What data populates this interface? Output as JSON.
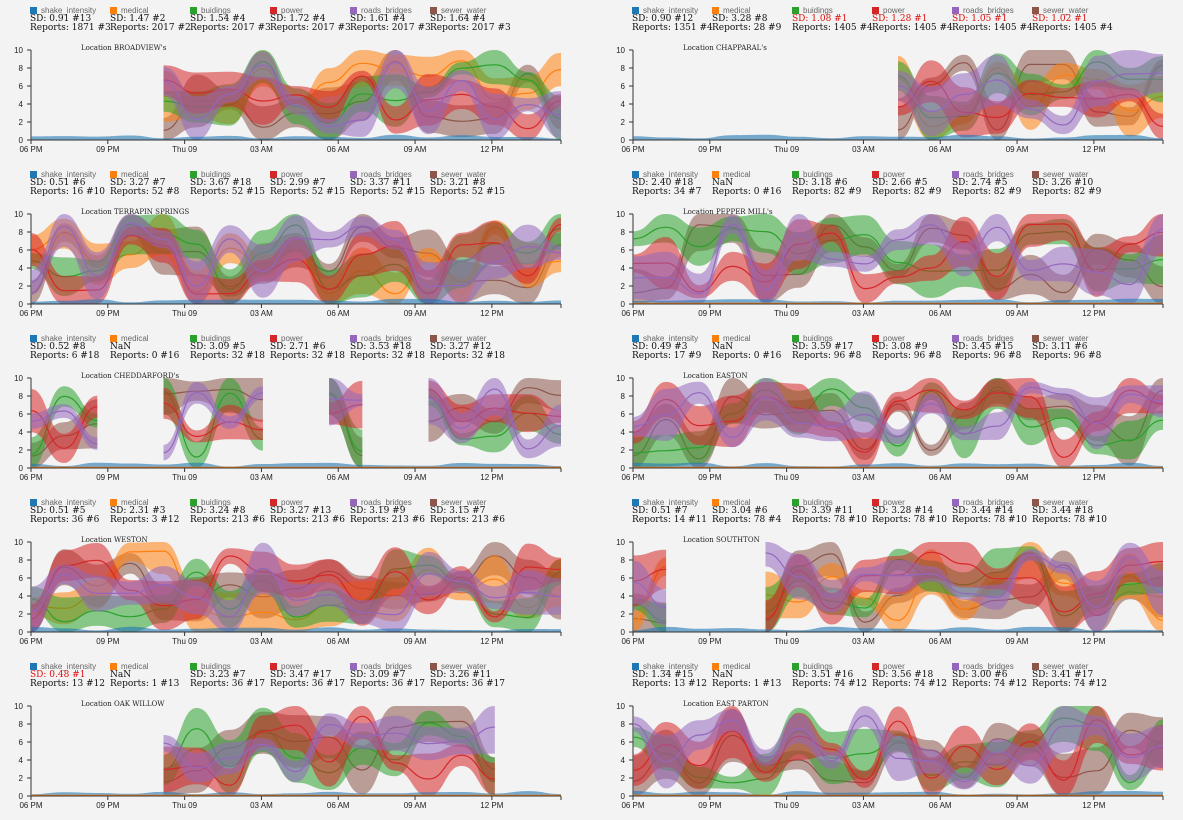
{
  "colors": {
    "shake_intensity": "#1f77b4",
    "medical": "#ff7f0e",
    "buidings": "#2ca02c",
    "power": "#d62728",
    "roads_bridges": "#9467bd",
    "sewer_water": "#8c564b"
  },
  "series_names": [
    "shake_intensity",
    "medical",
    "buidings",
    "power",
    "roads_bridges",
    "sewer_water"
  ],
  "chart_data": [
    {
      "type": "area",
      "title": "Location BROADVIEW's",
      "x_ticks": [
        "06 PM",
        "09 PM",
        "Thu 09",
        "03 AM",
        "06 AM",
        "09 AM",
        "12 PM"
      ],
      "y_ticks": [
        "0",
        "2",
        "4",
        "6",
        "8",
        "10"
      ],
      "ylim": [
        0,
        10
      ],
      "stats": [
        {
          "sd": "SD: 0.91 #13",
          "rep": "Reports: 1871 #3"
        },
        {
          "sd": "SD: 1.47 #2",
          "rep": "Reports: 2017 #2"
        },
        {
          "sd": "SD: 1.54 #4",
          "rep": "Reports: 2017 #3"
        },
        {
          "sd": "SD: 1.72 #4",
          "rep": "Reports: 2017 #3"
        },
        {
          "sd": "SD: 1.61 #4",
          "rep": "Reports: 2017 #3"
        },
        {
          "sd": "SD: 1.64 #4",
          "rep": "Reports: 2017 #3"
        }
      ],
      "warn": [
        false,
        false,
        false,
        false,
        false,
        false
      ],
      "gaps": [
        [
          0,
          0.24
        ]
      ]
    },
    {
      "type": "area",
      "title": "Location CHAPPARAL's",
      "x_ticks": [
        "06 PM",
        "09 PM",
        "Thu 09",
        "03 AM",
        "06 AM",
        "09 AM",
        "12 PM"
      ],
      "y_ticks": [
        "0",
        "2",
        "4",
        "6",
        "8",
        "10"
      ],
      "ylim": [
        0,
        10
      ],
      "stats": [
        {
          "sd": "SD: 0.90 #12",
          "rep": "Reports: 1351 #4"
        },
        {
          "sd": "SD: 3.28 #8",
          "rep": "Reports: 28 #9"
        },
        {
          "sd": "SD: 1.08 #1",
          "rep": "Reports: 1405 #4"
        },
        {
          "sd": "SD: 1.28 #1",
          "rep": "Reports: 1405 #4"
        },
        {
          "sd": "SD: 1.05 #1",
          "rep": "Reports: 1405 #4"
        },
        {
          "sd": "SD: 1.02 #1",
          "rep": "Reports: 1405 #4"
        }
      ],
      "warn": [
        false,
        false,
        true,
        true,
        true,
        true
      ],
      "gaps": [
        [
          0,
          0.48
        ]
      ]
    },
    {
      "type": "area",
      "title": "Location TERRAPIN SPRINGS",
      "x_ticks": [
        "06 PM",
        "09 PM",
        "Thu 09",
        "03 AM",
        "06 AM",
        "09 AM",
        "12 PM"
      ],
      "y_ticks": [
        "0",
        "2",
        "4",
        "6",
        "8",
        "10"
      ],
      "ylim": [
        0,
        10
      ],
      "stats": [
        {
          "sd": "SD: 0.51 #6",
          "rep": "Reports: 16 #10"
        },
        {
          "sd": "SD: 3.27 #7",
          "rep": "Reports: 52 #8"
        },
        {
          "sd": "SD: 3.67 #18",
          "rep": "Reports: 52 #15"
        },
        {
          "sd": "SD: 2.99 #7",
          "rep": "Reports: 52 #15"
        },
        {
          "sd": "SD: 3.37 #11",
          "rep": "Reports: 52 #15"
        },
        {
          "sd": "SD: 3.21 #8",
          "rep": "Reports: 52 #15"
        }
      ],
      "warn": [
        false,
        false,
        false,
        false,
        false,
        false
      ],
      "gaps": []
    },
    {
      "type": "area",
      "title": "Location PEPPER MILL's",
      "x_ticks": [
        "06 PM",
        "09 PM",
        "Thu 09",
        "03 AM",
        "06 AM",
        "09 AM",
        "12 PM"
      ],
      "y_ticks": [
        "0",
        "2",
        "4",
        "6",
        "8",
        "10"
      ],
      "ylim": [
        0,
        10
      ],
      "stats": [
        {
          "sd": "SD: 2.40 #18",
          "rep": "Reports: 34 #7"
        },
        {
          "sd": "NaN",
          "rep": "Reports: 0 #16"
        },
        {
          "sd": "SD: 3.18 #6",
          "rep": "Reports: 82 #9"
        },
        {
          "sd": "SD: 2.66 #5",
          "rep": "Reports: 82 #9"
        },
        {
          "sd": "SD: 2.74 #5",
          "rep": "Reports: 82 #9"
        },
        {
          "sd": "SD: 3.26 #10",
          "rep": "Reports: 82 #9"
        }
      ],
      "warn": [
        false,
        false,
        false,
        false,
        false,
        false
      ],
      "gaps": []
    },
    {
      "type": "area",
      "title": "Location CHEDDARFORD's",
      "x_ticks": [
        "06 PM",
        "09 PM",
        "Thu 09",
        "03 AM",
        "06 AM",
        "09 AM",
        "12 PM"
      ],
      "y_ticks": [
        "0",
        "2",
        "4",
        "6",
        "8",
        "10"
      ],
      "ylim": [
        0,
        10
      ],
      "stats": [
        {
          "sd": "SD: 0.52 #8",
          "rep": "Reports: 6 #18"
        },
        {
          "sd": "NaN",
          "rep": "Reports: 0 #16"
        },
        {
          "sd": "SD: 3.09 #5",
          "rep": "Reports: 32 #18"
        },
        {
          "sd": "SD: 2.71 #6",
          "rep": "Reports: 32 #18"
        },
        {
          "sd": "SD: 3.53 #18",
          "rep": "Reports: 32 #18"
        },
        {
          "sd": "SD: 3.27 #12",
          "rep": "Reports: 32 #18"
        }
      ],
      "warn": [
        false,
        false,
        false,
        false,
        false,
        false
      ],
      "gaps": [
        [
          0.15,
          0.24
        ],
        [
          0.44,
          0.53
        ],
        [
          0.65,
          0.74
        ]
      ]
    },
    {
      "type": "area",
      "title": "Location EASTON",
      "x_ticks": [
        "06 PM",
        "09 PM",
        "Thu 09",
        "03 AM",
        "06 AM",
        "09 AM",
        "12 PM"
      ],
      "y_ticks": [
        "0",
        "2",
        "4",
        "6",
        "8",
        "10"
      ],
      "ylim": [
        0,
        10
      ],
      "stats": [
        {
          "sd": "SD: 0.49 #3",
          "rep": "Reports: 17 #9"
        },
        {
          "sd": "NaN",
          "rep": "Reports: 0 #16"
        },
        {
          "sd": "SD: 3.59 #17",
          "rep": "Reports: 96 #8"
        },
        {
          "sd": "SD: 3.08 #9",
          "rep": "Reports: 96 #8"
        },
        {
          "sd": "SD: 3.45 #15",
          "rep": "Reports: 96 #8"
        },
        {
          "sd": "SD: 3.11 #6",
          "rep": "Reports: 96 #8"
        }
      ],
      "warn": [
        false,
        false,
        false,
        false,
        false,
        false
      ],
      "gaps": []
    },
    {
      "type": "area",
      "title": "Location WESTON",
      "x_ticks": [
        "06 PM",
        "09 PM",
        "Thu 09",
        "03 AM",
        "06 AM",
        "09 AM",
        "12 PM"
      ],
      "y_ticks": [
        "0",
        "2",
        "4",
        "6",
        "8",
        "10"
      ],
      "ylim": [
        0,
        10
      ],
      "stats": [
        {
          "sd": "SD: 0.51 #5",
          "rep": "Reports: 36 #6"
        },
        {
          "sd": "SD: 2.31 #3",
          "rep": "Reports: 3 #12"
        },
        {
          "sd": "SD: 3.24 #8",
          "rep": "Reports: 213 #6"
        },
        {
          "sd": "SD: 3.27 #13",
          "rep": "Reports: 213 #6"
        },
        {
          "sd": "SD: 3.19 #9",
          "rep": "Reports: 213 #6"
        },
        {
          "sd": "SD: 3.15 #7",
          "rep": "Reports: 213 #6"
        }
      ],
      "warn": [
        false,
        false,
        false,
        false,
        false,
        false
      ],
      "gaps": []
    },
    {
      "type": "area",
      "title": "Location SOUTHTON",
      "x_ticks": [
        "06 PM",
        "09 PM",
        "Thu 09",
        "03 AM",
        "06 AM",
        "09 AM",
        "12 PM"
      ],
      "y_ticks": [
        "0",
        "2",
        "4",
        "6",
        "8",
        "10"
      ],
      "ylim": [
        0,
        10
      ],
      "stats": [
        {
          "sd": "SD: 0.51 #7",
          "rep": "Reports: 14 #11"
        },
        {
          "sd": "SD: 3.04 #6",
          "rep": "Reports: 78 #4"
        },
        {
          "sd": "SD: 3.39 #11",
          "rep": "Reports: 78 #10"
        },
        {
          "sd": "SD: 3.28 #14",
          "rep": "Reports: 78 #10"
        },
        {
          "sd": "SD: 3.44 #14",
          "rep": "Reports: 78 #10"
        },
        {
          "sd": "SD: 3.44 #18",
          "rep": "Reports: 78 #10"
        }
      ],
      "warn": [
        false,
        false,
        false,
        false,
        false,
        false
      ],
      "gaps": [
        [
          0.1,
          0.2
        ]
      ]
    },
    {
      "type": "area",
      "title": "Location OAK WILLOW",
      "x_ticks": [
        "06 PM",
        "09 PM",
        "Thu 09",
        "03 AM",
        "06 AM",
        "09 AM",
        "12 PM"
      ],
      "y_ticks": [
        "0",
        "2",
        "4",
        "6",
        "8",
        "10"
      ],
      "ylim": [
        0,
        10
      ],
      "stats": [
        {
          "sd": "SD: 0.48 #1",
          "rep": "Reports: 13 #12"
        },
        {
          "sd": "NaN",
          "rep": "Reports: 1 #13"
        },
        {
          "sd": "SD: 3.23 #7",
          "rep": "Reports: 36 #17"
        },
        {
          "sd": "SD: 3.47 #17",
          "rep": "Reports: 36 #17"
        },
        {
          "sd": "SD: 3.09 #7",
          "rep": "Reports: 36 #17"
        },
        {
          "sd": "SD: 3.26 #11",
          "rep": "Reports: 36 #17"
        }
      ],
      "warn": [
        true,
        false,
        false,
        false,
        false,
        false
      ],
      "gaps": [
        [
          0,
          0.24
        ],
        [
          0.9,
          1
        ]
      ]
    },
    {
      "type": "area",
      "title": "Location EAST PARTON",
      "x_ticks": [
        "06 PM",
        "09 PM",
        "Thu 09",
        "03 AM",
        "06 AM",
        "09 AM",
        "12 PM"
      ],
      "y_ticks": [
        "0",
        "2",
        "4",
        "6",
        "8",
        "10"
      ],
      "ylim": [
        0,
        10
      ],
      "stats": [
        {
          "sd": "SD: 1.34 #15",
          "rep": "Reports: 13 #12"
        },
        {
          "sd": "NaN",
          "rep": "Reports: 1 #13"
        },
        {
          "sd": "SD: 3.51 #16",
          "rep": "Reports: 74 #12"
        },
        {
          "sd": "SD: 3.56 #18",
          "rep": "Reports: 74 #12"
        },
        {
          "sd": "SD: 3.00 #6",
          "rep": "Reports: 74 #12"
        },
        {
          "sd": "SD: 3.41 #17",
          "rep": "Reports: 74 #12"
        }
      ],
      "warn": [
        false,
        false,
        false,
        false,
        false,
        false
      ],
      "gaps": []
    }
  ]
}
